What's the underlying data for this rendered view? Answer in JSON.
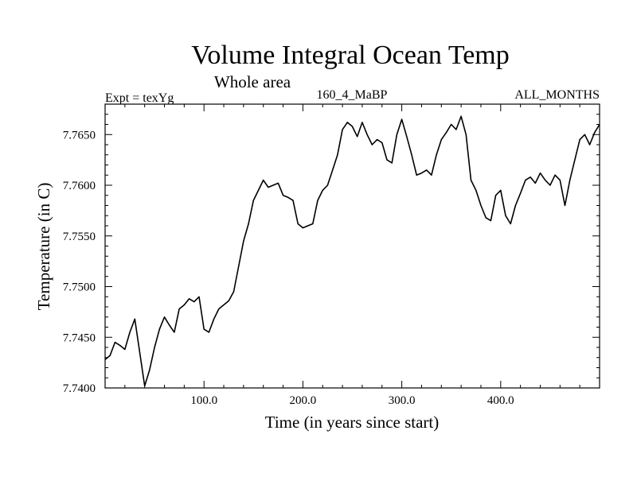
{
  "chart_data": {
    "type": "line",
    "title": "Volume Integral Ocean Temp",
    "subtitle": "Whole area",
    "annotations": {
      "left": "Expt = texYg",
      "center": "160_4_MaBP",
      "right": "ALL_MONTHS"
    },
    "xlabel": "Time (in years since start)",
    "ylabel": "Temperature (in C)",
    "xlim": [
      0,
      500
    ],
    "ylim": [
      7.74,
      7.768
    ],
    "x_ticks": [
      100,
      200,
      300,
      400
    ],
    "x_tick_labels": [
      "100.0",
      "200.0",
      "300.0",
      "400.0"
    ],
    "y_ticks": [
      7.74,
      7.745,
      7.75,
      7.755,
      7.76,
      7.765
    ],
    "y_tick_labels": [
      "7.7400",
      "7.7450",
      "7.7500",
      "7.7550",
      "7.7600",
      "7.7650"
    ],
    "grid": false,
    "legend": "none",
    "series": [
      {
        "color": "#000000",
        "x": [
          0,
          5,
          10,
          15,
          20,
          25,
          30,
          35,
          40,
          45,
          50,
          55,
          60,
          65,
          70,
          75,
          80,
          85,
          90,
          95,
          100,
          105,
          110,
          115,
          120,
          125,
          130,
          135,
          140,
          145,
          150,
          155,
          160,
          165,
          170,
          175,
          180,
          185,
          190,
          195,
          200,
          205,
          210,
          215,
          220,
          225,
          230,
          235,
          240,
          245,
          250,
          255,
          260,
          265,
          270,
          275,
          280,
          285,
          290,
          295,
          300,
          305,
          310,
          315,
          320,
          325,
          330,
          335,
          340,
          345,
          350,
          355,
          360,
          365,
          370,
          375,
          380,
          385,
          390,
          395,
          400,
          405,
          410,
          415,
          420,
          425,
          430,
          435,
          440,
          445,
          450,
          455,
          460,
          465,
          470,
          475,
          480,
          485,
          490,
          495,
          500
        ],
        "values": [
          7.7428,
          7.7432,
          7.7445,
          7.7442,
          7.7438,
          7.7455,
          7.7468,
          7.7435,
          7.7402,
          7.7418,
          7.744,
          7.7458,
          7.747,
          7.7462,
          7.7455,
          7.7478,
          7.7482,
          7.7488,
          7.7485,
          7.749,
          7.7458,
          7.7455,
          7.7468,
          7.7478,
          7.7482,
          7.7486,
          7.7495,
          7.752,
          7.7545,
          7.7562,
          7.7585,
          7.7595,
          7.7605,
          7.7598,
          7.76,
          7.7602,
          7.759,
          7.7588,
          7.7585,
          7.7562,
          7.7558,
          7.756,
          7.7562,
          7.7585,
          7.7595,
          7.76,
          7.7615,
          7.763,
          7.7655,
          7.7662,
          7.7658,
          7.7648,
          7.7662,
          7.765,
          7.764,
          7.7645,
          7.7642,
          7.7625,
          7.7622,
          7.765,
          7.7665,
          7.7648,
          7.763,
          7.761,
          7.7612,
          7.7615,
          7.761,
          7.763,
          7.7645,
          7.7652,
          7.766,
          7.7655,
          7.7668,
          7.765,
          7.7605,
          7.7595,
          7.758,
          7.7568,
          7.7565,
          7.759,
          7.7595,
          7.757,
          7.7562,
          7.758,
          7.7592,
          7.7605,
          7.7608,
          7.7602,
          7.7612,
          7.7605,
          7.76,
          7.761,
          7.7605,
          7.758,
          7.7605,
          7.7625,
          7.7645,
          7.765,
          7.764,
          7.7652,
          7.766
        ]
      }
    ]
  }
}
